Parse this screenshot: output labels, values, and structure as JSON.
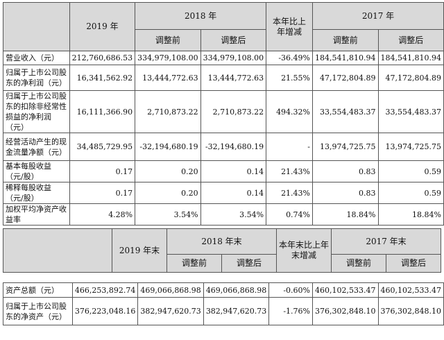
{
  "header1": {
    "y2019": "2019 年",
    "y2018": "2018 年",
    "change": "本年比上年增减",
    "y2017": "2017 年",
    "before": "调整前",
    "after": "调整后"
  },
  "rows1": [
    {
      "label": "营业收入（元）",
      "c2019": "212,760,686.53",
      "c2018b": "334,979,108.00",
      "c2018a": "334,979,108.00",
      "chg": "-36.49%",
      "c2017b": "184,541,810.94",
      "c2017a": "184,541,810.94"
    },
    {
      "label": "归属于上市公司股东的净利润（元）",
      "c2019": "16,341,562.92",
      "c2018b": "13,444,772.63",
      "c2018a": "13,444,772.63",
      "chg": "21.55%",
      "c2017b": "47,172,804.89",
      "c2017a": "47,172,804.89"
    },
    {
      "label": "归属于上市公司股东的扣除非经常性损益的净利润（元）",
      "c2019": "16,111,366.90",
      "c2018b": "2,710,873.22",
      "c2018a": "2,710,873.22",
      "chg": "494.32%",
      "c2017b": "33,554,483.37",
      "c2017a": "33,554,483.37"
    },
    {
      "label": "经营活动产生的现金流量净额（元）",
      "c2019": "34,485,729.95",
      "c2018b": "-32,194,680.19",
      "c2018a": "-32,194,680.19",
      "chg": "-",
      "c2017b": "13,974,725.75",
      "c2017a": "13,974,725.75"
    },
    {
      "label": "基本每股收益（元/股）",
      "c2019": "0.17",
      "c2018b": "0.20",
      "c2018a": "0.14",
      "chg": "21.43%",
      "c2017b": "0.83",
      "c2017a": "0.59"
    },
    {
      "label": "稀释每股收益（元/股）",
      "c2019": "0.17",
      "c2018b": "0.20",
      "c2018a": "0.14",
      "chg": "21.43%",
      "c2017b": "0.83",
      "c2017a": "0.59"
    },
    {
      "label": "加权平均净资产收益率",
      "c2019": "4.28%",
      "c2018b": "3.54%",
      "c2018a": "3.54%",
      "chg": "0.74%",
      "c2017b": "18.84%",
      "c2017a": "18.84%"
    }
  ],
  "header2": {
    "y2019": "2019 年末",
    "y2018": "2018 年末",
    "change": "本年末比上年末增减",
    "y2017": "2017 年末",
    "before": "调整前",
    "after": "调整后"
  },
  "rows2": [
    {
      "label": "资产总额（元）",
      "c2019": "466,253,892.74",
      "c2018b": "469,066,868.98",
      "c2018a": "469,066,868.98",
      "chg": "-0.60%",
      "c2017b": "460,102,533.47",
      "c2017a": "460,102,533.47"
    },
    {
      "label": "归属于上市公司股东的净资产（元）",
      "c2019": "376,223,048.16",
      "c2018b": "382,947,620.73",
      "c2018a": "382,947,620.73",
      "chg": "-1.76%",
      "c2017b": "376,302,848.10",
      "c2017a": "376,302,848.10"
    }
  ]
}
